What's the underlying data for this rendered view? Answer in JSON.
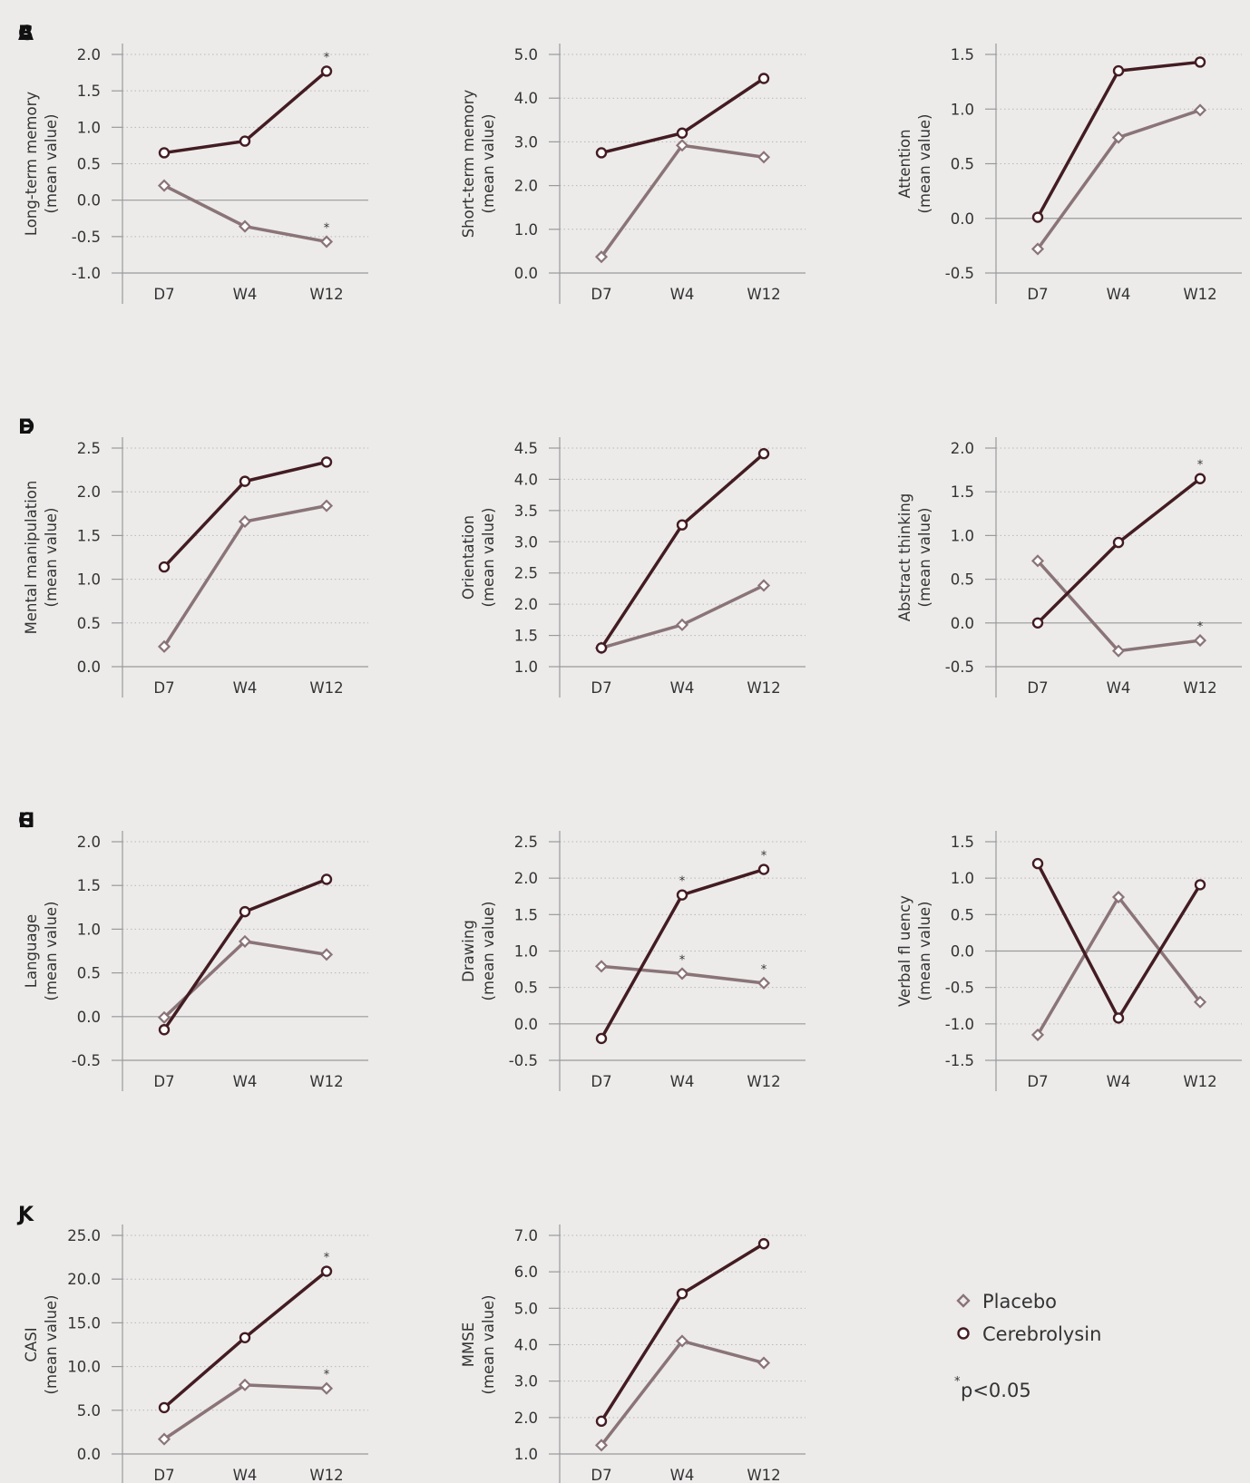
{
  "colors": {
    "placebo": "#8a7478",
    "cerebrolysin": "#431c22",
    "axis": "#9a9a9a",
    "grid": "#b8b8b8"
  },
  "legend": {
    "items": [
      {
        "label": "Placebo",
        "marker": "diamond",
        "color": "#8a7478"
      },
      {
        "label": "Cerebrolysin",
        "marker": "circle",
        "color": "#431c22"
      }
    ],
    "note_star": "*",
    "note_text": "p<0.05"
  },
  "chart_data": [
    {
      "letter": "A",
      "type": "line",
      "ylabel_lines": [
        "Long-term memory",
        "(mean value)"
      ],
      "categories": [
        "D7",
        "W4",
        "W12"
      ],
      "ylim": [
        -1.0,
        2.0
      ],
      "yticks": [
        "2.0",
        "1.5",
        "1.0",
        "0.5",
        "0.0",
        "-0.5",
        "-1.0"
      ],
      "zero_line": true,
      "series": [
        {
          "name": "Placebo",
          "values": [
            0.2,
            -0.36,
            -0.57
          ],
          "stars": [
            false,
            false,
            true
          ]
        },
        {
          "name": "Cerebrolysin",
          "values": [
            0.65,
            0.81,
            1.77
          ],
          "stars": [
            false,
            false,
            true
          ]
        }
      ]
    },
    {
      "letter": "B",
      "type": "line",
      "ylabel_lines": [
        "Short-term memory",
        "(mean value)"
      ],
      "categories": [
        "D7",
        "W4",
        "W12"
      ],
      "ylim": [
        0.0,
        5.0
      ],
      "yticks": [
        "5.0",
        "4.0",
        "3.0",
        "2.0",
        "1.0",
        "0.0"
      ],
      "zero_line": false,
      "series": [
        {
          "name": "Placebo",
          "values": [
            0.37,
            2.92,
            2.65
          ],
          "stars": [
            false,
            false,
            false
          ]
        },
        {
          "name": "Cerebrolysin",
          "values": [
            2.75,
            3.2,
            4.45
          ],
          "stars": [
            false,
            false,
            false
          ]
        }
      ]
    },
    {
      "letter": "C",
      "type": "line",
      "ylabel_lines": [
        "Attention",
        "(mean value)"
      ],
      "categories": [
        "D7",
        "W4",
        "W12"
      ],
      "ylim": [
        -0.5,
        1.5
      ],
      "yticks": [
        "1.5",
        "1.0",
        "0.5",
        "0.0",
        "-0.5"
      ],
      "zero_line": true,
      "series": [
        {
          "name": "Placebo",
          "values": [
            -0.28,
            0.74,
            0.99
          ],
          "stars": [
            false,
            false,
            false
          ]
        },
        {
          "name": "Cerebrolysin",
          "values": [
            0.01,
            1.35,
            1.43
          ],
          "stars": [
            false,
            false,
            false
          ]
        }
      ]
    },
    {
      "letter": "D",
      "type": "line",
      "ylabel_lines": [
        "Mental manipulation",
        "(mean value)"
      ],
      "categories": [
        "D7",
        "W4",
        "W12"
      ],
      "ylim": [
        0.0,
        2.5
      ],
      "yticks": [
        "2.5",
        "2.0",
        "1.5",
        "1.0",
        "0.5",
        "0.0"
      ],
      "zero_line": false,
      "series": [
        {
          "name": "Placebo",
          "values": [
            0.23,
            1.66,
            1.84
          ],
          "stars": [
            false,
            false,
            false
          ]
        },
        {
          "name": "Cerebrolysin",
          "values": [
            1.14,
            2.12,
            2.34
          ],
          "stars": [
            false,
            false,
            false
          ]
        }
      ]
    },
    {
      "letter": "E",
      "type": "line",
      "ylabel_lines": [
        "Orientation",
        "(mean value)"
      ],
      "categories": [
        "D7",
        "W4",
        "W12"
      ],
      "ylim": [
        1.0,
        4.5
      ],
      "yticks": [
        "4.5",
        "4.0",
        "3.5",
        "3.0",
        "2.5",
        "2.0",
        "1.5",
        "1.0"
      ],
      "zero_line": false,
      "series": [
        {
          "name": "Placebo",
          "values": [
            1.3,
            1.67,
            2.3
          ],
          "stars": [
            false,
            false,
            false
          ]
        },
        {
          "name": "Cerebrolysin",
          "values": [
            1.3,
            3.27,
            4.41
          ],
          "stars": [
            false,
            false,
            false
          ]
        }
      ]
    },
    {
      "letter": "F",
      "type": "line",
      "ylabel_lines": [
        "Abstract thinking",
        "(mean value)"
      ],
      "categories": [
        "D7",
        "W4",
        "W12"
      ],
      "ylim": [
        -0.5,
        2.0
      ],
      "yticks": [
        "2.0",
        "1.5",
        "1.0",
        "0.5",
        "0.0",
        "-0.5"
      ],
      "zero_line": true,
      "series": [
        {
          "name": "Placebo",
          "values": [
            0.71,
            -0.32,
            -0.2
          ],
          "stars": [
            false,
            false,
            true
          ]
        },
        {
          "name": "Cerebrolysin",
          "values": [
            0.0,
            0.92,
            1.65
          ],
          "stars": [
            false,
            false,
            true
          ]
        }
      ]
    },
    {
      "letter": "G",
      "type": "line",
      "ylabel_lines": [
        "Language",
        "(mean value)"
      ],
      "categories": [
        "D7",
        "W4",
        "W12"
      ],
      "ylim": [
        -0.5,
        2.0
      ],
      "yticks": [
        "2.0",
        "1.5",
        "1.0",
        "0.5",
        "0.0",
        "-0.5"
      ],
      "zero_line": true,
      "series": [
        {
          "name": "Placebo",
          "values": [
            -0.01,
            0.86,
            0.71
          ],
          "stars": [
            false,
            false,
            false
          ]
        },
        {
          "name": "Cerebrolysin",
          "values": [
            -0.15,
            1.2,
            1.57
          ],
          "stars": [
            false,
            false,
            false
          ]
        }
      ]
    },
    {
      "letter": "H",
      "type": "line",
      "ylabel_lines": [
        "Drawing",
        "(mean value)"
      ],
      "categories": [
        "D7",
        "W4",
        "W12"
      ],
      "ylim": [
        -0.5,
        2.5
      ],
      "yticks": [
        "2.5",
        "2.0",
        "1.5",
        "1.0",
        "0.5",
        "0.0",
        "-0.5"
      ],
      "zero_line": true,
      "series": [
        {
          "name": "Placebo",
          "values": [
            0.79,
            0.69,
            0.56
          ],
          "stars": [
            false,
            true,
            true
          ]
        },
        {
          "name": "Cerebrolysin",
          "values": [
            -0.2,
            1.77,
            2.12
          ],
          "stars": [
            false,
            true,
            true
          ]
        }
      ]
    },
    {
      "letter": "I",
      "type": "line",
      "ylabel_lines": [
        "Verbal fl uency",
        "(mean value)"
      ],
      "categories": [
        "D7",
        "W4",
        "W12"
      ],
      "ylim": [
        -1.5,
        1.5
      ],
      "yticks": [
        "1.5",
        "1.0",
        "0.5",
        "0.0",
        "-0.5",
        "-1.0",
        "-1.5"
      ],
      "zero_line": true,
      "series": [
        {
          "name": "Placebo",
          "values": [
            -1.15,
            0.74,
            -0.7
          ],
          "stars": [
            false,
            false,
            false
          ]
        },
        {
          "name": "Cerebrolysin",
          "values": [
            1.2,
            -0.92,
            0.91
          ],
          "stars": [
            false,
            false,
            false
          ]
        }
      ]
    },
    {
      "letter": "J",
      "type": "line",
      "ylabel_lines": [
        "CASI",
        "(mean value)"
      ],
      "categories": [
        "D7",
        "W4",
        "W12"
      ],
      "ylim": [
        0.0,
        25.0
      ],
      "yticks": [
        "25.0",
        "20.0",
        "15.0",
        "10.0",
        "5.0",
        "0.0"
      ],
      "zero_line": false,
      "series": [
        {
          "name": "Placebo",
          "values": [
            1.7,
            7.9,
            7.5
          ],
          "stars": [
            false,
            false,
            true
          ]
        },
        {
          "name": "Cerebrolysin",
          "values": [
            5.3,
            13.3,
            20.9
          ],
          "stars": [
            false,
            false,
            true
          ]
        }
      ]
    },
    {
      "letter": "K",
      "type": "line",
      "ylabel_lines": [
        "MMSE",
        "(mean value)"
      ],
      "categories": [
        "D7",
        "W4",
        "W12"
      ],
      "ylim": [
        1.0,
        7.0
      ],
      "yticks": [
        "7.0",
        "6.0",
        "5.0",
        "4.0",
        "3.0",
        "2.0",
        "1.0"
      ],
      "zero_line": false,
      "series": [
        {
          "name": "Placebo",
          "values": [
            1.24,
            4.1,
            3.5
          ],
          "stars": [
            false,
            false,
            false
          ]
        },
        {
          "name": "Cerebrolysin",
          "values": [
            1.9,
            5.4,
            6.77
          ],
          "stars": [
            false,
            false,
            false
          ]
        }
      ]
    }
  ]
}
